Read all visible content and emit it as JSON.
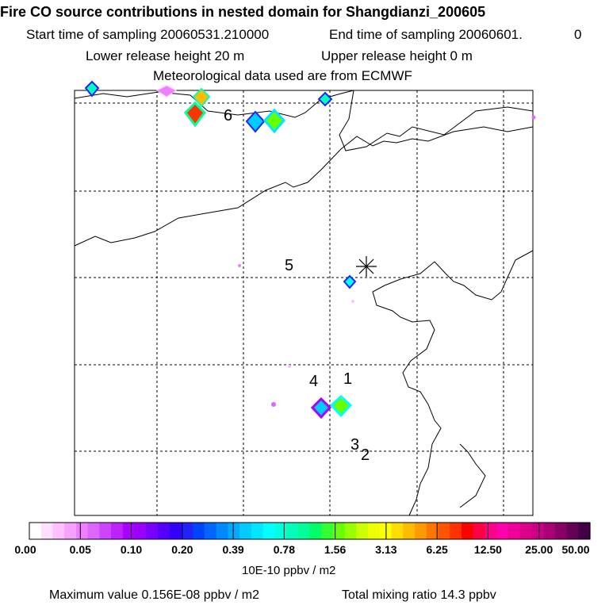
{
  "header": {
    "title": "Fire CO source contributions in nested domain for Shangdianzi_200605",
    "start_label": "Start time of sampling 20060531.210000",
    "end_label": "End time of sampling 20060601.",
    "end_suffix": "0",
    "lower_label": "Lower release height   20 m",
    "upper_label": "Upper release height    0 m",
    "met_label": "Meteorological data used are from ECMWF"
  },
  "chart_data": {
    "type": "heatmap",
    "title": "Fire CO source contributions in nested domain for Shangdianzi_200605",
    "receptor_marker": "*",
    "point_labels": [
      "6",
      "5",
      "4",
      "1",
      "3",
      "2"
    ],
    "colorbar": {
      "tick_labels": [
        "0.00",
        "0.05",
        "0.10",
        "0.20",
        "0.39",
        "0.78",
        "1.56",
        "3.13",
        "6.25",
        "12.50",
        "25.00",
        "50.00"
      ],
      "colors": [
        "#ffffff",
        "#ffe0ff",
        "#ffc0ff",
        "#f7a0ff",
        "#ee80ff",
        "#dd66ff",
        "#cc44ff",
        "#bb22ff",
        "#aa00ff",
        "#9900ff",
        "#7700ff",
        "#5500ff",
        "#3300ff",
        "#2222ff",
        "#0044ff",
        "#0066ff",
        "#0088ff",
        "#00aaff",
        "#00ccff",
        "#00e6ff",
        "#00ffff",
        "#00ffdd",
        "#00ffbb",
        "#00ff99",
        "#00ff66",
        "#33ff33",
        "#66ff00",
        "#99ff00",
        "#ccff00",
        "#eeff00",
        "#ffff00",
        "#ffdd00",
        "#ffbb00",
        "#ff9900",
        "#ff7700",
        "#ff5500",
        "#ff3300",
        "#ff0000",
        "#ff0044",
        "#ff0088",
        "#ff00aa",
        "#ee0099",
        "#dd0088",
        "#cc0088",
        "#aa0077",
        "#880066",
        "#660055",
        "#440044"
      ],
      "units": "10E-10 ppbv / m2"
    },
    "blobs": [
      {
        "lon_idx": 1,
        "value": 0.39
      },
      {
        "lon_idx": 2,
        "value": 12.5
      },
      {
        "lon_idx": 3,
        "value": 0.78
      },
      {
        "lon_idx": 4,
        "value": 0.39
      },
      {
        "lon_idx": 5,
        "value": 1.56
      },
      {
        "lon_idx": 6,
        "value": 0.39
      },
      {
        "lon_idx": 7,
        "value": 0.2
      },
      {
        "lon_idx": 8,
        "value": 0.78
      },
      {
        "lon_idx": 9,
        "value": 1.56
      }
    ]
  },
  "footer": {
    "max_label": "Maximum value  0.156E-08 ppbv / m2",
    "total_label": "Total mixing ratio      14.3 ppbv"
  }
}
